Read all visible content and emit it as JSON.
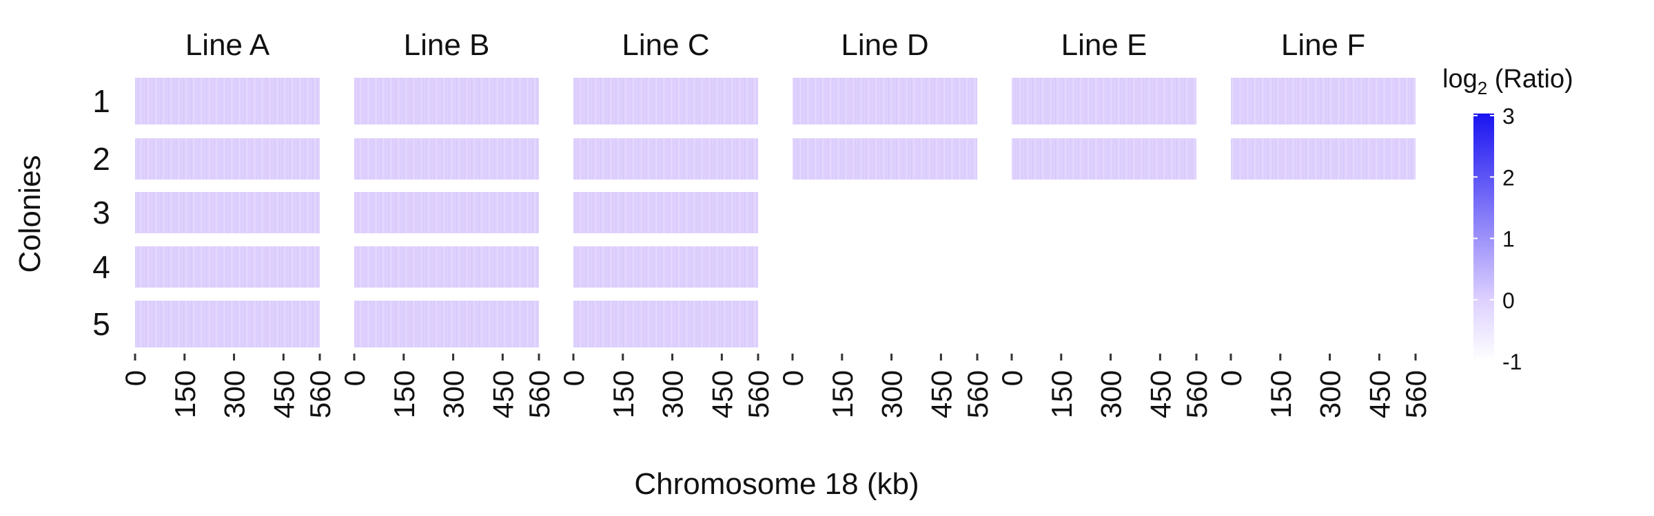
{
  "chart_data": {
    "type": "heatmap",
    "title": "",
    "xlabel": "Chromosome 18 (kb)",
    "ylabel": "Colonies",
    "x_ticks": [
      "0",
      "150",
      "300",
      "450",
      "560"
    ],
    "xlim": [
      0,
      560
    ],
    "panels": [
      "Line A",
      "Line B",
      "Line C",
      "Line D",
      "Line E",
      "Line F"
    ],
    "rows": [
      "1",
      "2",
      "3",
      "4",
      "5"
    ],
    "colonies_per_panel": [
      5,
      5,
      5,
      2,
      2,
      2
    ],
    "cell_value_approx": 0,
    "legend": {
      "title_base": "log",
      "title_sub": "2",
      "title_rest": " (Ratio)",
      "ticks": [
        "3",
        "2",
        "1",
        "0",
        "-1"
      ],
      "tick_values": [
        3,
        2,
        1,
        0,
        -1
      ],
      "range": [
        -1,
        3
      ],
      "color_low": "#ffffff",
      "color_mid": "#ddd0ff",
      "color_high": "#1a14f0",
      "placement": "right"
    },
    "tile_color": "#dfd0fd"
  }
}
